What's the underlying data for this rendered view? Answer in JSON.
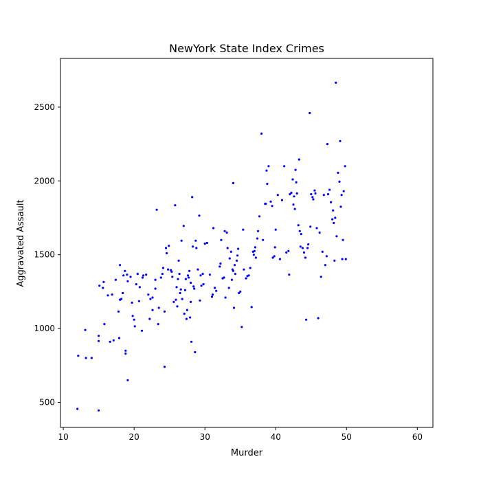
{
  "chart_data": {
    "type": "scatter",
    "title": "NewYork State Index Crimes",
    "xlabel": "Murder",
    "ylabel": "Aggravated Assault",
    "xlim": [
      9.6,
      62.2
    ],
    "ylim": [
      330,
      2830
    ],
    "xticks": [
      10,
      20,
      30,
      40,
      50,
      60
    ],
    "yticks": [
      500,
      1000,
      1500,
      2000,
      2500
    ],
    "grid": false,
    "marker_color": "#0000ff",
    "points": [
      [
        12.0,
        455
      ],
      [
        12.1,
        815
      ],
      [
        13.1,
        990
      ],
      [
        13.2,
        800
      ],
      [
        14.0,
        800
      ],
      [
        15.0,
        445
      ],
      [
        15.0,
        950
      ],
      [
        15.0,
        915
      ],
      [
        15.1,
        1290
      ],
      [
        15.6,
        1275
      ],
      [
        15.7,
        1315
      ],
      [
        15.8,
        1030
      ],
      [
        16.3,
        1225
      ],
      [
        16.6,
        910
      ],
      [
        16.9,
        1230
      ],
      [
        17.1,
        920
      ],
      [
        17.4,
        1330
      ],
      [
        17.8,
        1115
      ],
      [
        17.9,
        935
      ],
      [
        18.0,
        1430
      ],
      [
        18.0,
        1195
      ],
      [
        18.2,
        1200
      ],
      [
        18.4,
        1240
      ],
      [
        18.5,
        1360
      ],
      [
        18.7,
        1390
      ],
      [
        18.8,
        850
      ],
      [
        18.8,
        830
      ],
      [
        19.0,
        1365
      ],
      [
        19.1,
        1320
      ],
      [
        19.1,
        650
      ],
      [
        19.5,
        1350
      ],
      [
        19.7,
        1175
      ],
      [
        19.8,
        1085
      ],
      [
        20.0,
        1060
      ],
      [
        20.1,
        1015
      ],
      [
        20.3,
        1300
      ],
      [
        20.5,
        1370
      ],
      [
        20.7,
        1185
      ],
      [
        20.8,
        1280
      ],
      [
        21.1,
        985
      ],
      [
        21.2,
        1345
      ],
      [
        21.3,
        1360
      ],
      [
        21.7,
        1365
      ],
      [
        22.0,
        1230
      ],
      [
        22.2,
        1065
      ],
      [
        22.3,
        1200
      ],
      [
        22.6,
        1210
      ],
      [
        22.6,
        1125
      ],
      [
        23.0,
        1270
      ],
      [
        23.0,
        1330
      ],
      [
        23.2,
        1805
      ],
      [
        23.4,
        1030
      ],
      [
        23.5,
        1140
      ],
      [
        23.8,
        1345
      ],
      [
        24.0,
        1370
      ],
      [
        24.1,
        1410
      ],
      [
        24.3,
        1115
      ],
      [
        24.3,
        740
      ],
      [
        24.5,
        1545
      ],
      [
        24.6,
        1510
      ],
      [
        24.8,
        1400
      ],
      [
        24.9,
        1560
      ],
      [
        25.2,
        1395
      ],
      [
        25.3,
        1385
      ],
      [
        25.4,
        1350
      ],
      [
        25.6,
        1180
      ],
      [
        25.8,
        1835
      ],
      [
        25.9,
        1195
      ],
      [
        26.0,
        1280
      ],
      [
        26.1,
        1150
      ],
      [
        26.2,
        1335
      ],
      [
        26.3,
        1460
      ],
      [
        26.4,
        1370
      ],
      [
        26.5,
        1240
      ],
      [
        26.6,
        1265
      ],
      [
        26.7,
        1595
      ],
      [
        26.8,
        1200
      ],
      [
        27.0,
        1695
      ],
      [
        27.1,
        1100
      ],
      [
        27.2,
        1260
      ],
      [
        27.3,
        1335
      ],
      [
        27.4,
        1065
      ],
      [
        27.5,
        1125
      ],
      [
        27.6,
        1360
      ],
      [
        27.7,
        1345
      ],
      [
        27.8,
        1390
      ],
      [
        27.9,
        1075
      ],
      [
        28.0,
        1310
      ],
      [
        28.0,
        1180
      ],
      [
        28.1,
        910
      ],
      [
        28.2,
        1890
      ],
      [
        28.3,
        1555
      ],
      [
        28.4,
        1285
      ],
      [
        28.5,
        1270
      ],
      [
        28.6,
        840
      ],
      [
        28.7,
        1595
      ],
      [
        28.8,
        1545
      ],
      [
        29.0,
        1400
      ],
      [
        29.2,
        1765
      ],
      [
        29.3,
        1190
      ],
      [
        29.4,
        1360
      ],
      [
        29.5,
        1290
      ],
      [
        29.7,
        1370
      ],
      [
        29.8,
        1300
      ],
      [
        30.0,
        1575
      ],
      [
        30.3,
        1580
      ],
      [
        30.7,
        1365
      ],
      [
        31.0,
        1215
      ],
      [
        31.1,
        1230
      ],
      [
        31.2,
        1680
      ],
      [
        31.4,
        1275
      ],
      [
        31.6,
        1255
      ],
      [
        32.1,
        1420
      ],
      [
        32.2,
        1440
      ],
      [
        32.3,
        1600
      ],
      [
        32.5,
        1340
      ],
      [
        32.7,
        1345
      ],
      [
        32.8,
        1660
      ],
      [
        32.9,
        1210
      ],
      [
        33.1,
        1650
      ],
      [
        33.2,
        1545
      ],
      [
        33.4,
        1275
      ],
      [
        33.5,
        1475
      ],
      [
        33.7,
        1520
      ],
      [
        33.8,
        1330
      ],
      [
        33.9,
        1400
      ],
      [
        34.0,
        1985
      ],
      [
        34.0,
        1390
      ],
      [
        34.1,
        1140
      ],
      [
        34.2,
        1430
      ],
      [
        34.3,
        1370
      ],
      [
        34.5,
        1460
      ],
      [
        34.6,
        1495
      ],
      [
        34.7,
        1540
      ],
      [
        34.8,
        1240
      ],
      [
        35.0,
        1250
      ],
      [
        35.2,
        1010
      ],
      [
        35.4,
        1670
      ],
      [
        35.5,
        1400
      ],
      [
        35.8,
        1340
      ],
      [
        36.0,
        1355
      ],
      [
        36.2,
        1360
      ],
      [
        36.4,
        1410
      ],
      [
        36.6,
        1145
      ],
      [
        36.8,
        1520
      ],
      [
        36.9,
        1500
      ],
      [
        37.0,
        1525
      ],
      [
        37.1,
        1550
      ],
      [
        37.2,
        1480
      ],
      [
        37.4,
        1610
      ],
      [
        37.5,
        1660
      ],
      [
        37.7,
        1760
      ],
      [
        38.0,
        2320
      ],
      [
        38.2,
        1600
      ],
      [
        38.5,
        1845
      ],
      [
        38.6,
        1845
      ],
      [
        38.7,
        2070
      ],
      [
        38.8,
        1980
      ],
      [
        39.0,
        2100
      ],
      [
        39.3,
        1860
      ],
      [
        39.5,
        1830
      ],
      [
        39.6,
        1480
      ],
      [
        39.8,
        1490
      ],
      [
        39.9,
        1550
      ],
      [
        40.0,
        1670
      ],
      [
        40.3,
        1905
      ],
      [
        40.6,
        1470
      ],
      [
        40.9,
        1870
      ],
      [
        41.2,
        2100
      ],
      [
        41.5,
        1515
      ],
      [
        41.8,
        1525
      ],
      [
        41.9,
        1365
      ],
      [
        42.0,
        1910
      ],
      [
        42.2,
        1920
      ],
      [
        42.4,
        2010
      ],
      [
        42.5,
        1840
      ],
      [
        42.6,
        1895
      ],
      [
        42.7,
        1810
      ],
      [
        42.8,
        2075
      ],
      [
        42.9,
        1990
      ],
      [
        43.0,
        1915
      ],
      [
        43.2,
        1700
      ],
      [
        43.3,
        2145
      ],
      [
        43.4,
        1660
      ],
      [
        43.5,
        1555
      ],
      [
        43.6,
        1640
      ],
      [
        43.8,
        1545
      ],
      [
        44.0,
        1515
      ],
      [
        44.2,
        1480
      ],
      [
        44.3,
        1060
      ],
      [
        44.5,
        1545
      ],
      [
        44.6,
        1570
      ],
      [
        44.8,
        2460
      ],
      [
        44.9,
        1690
      ],
      [
        45.0,
        1910
      ],
      [
        45.2,
        1890
      ],
      [
        45.3,
        1875
      ],
      [
        45.5,
        1935
      ],
      [
        45.6,
        1915
      ],
      [
        45.8,
        1680
      ],
      [
        46.0,
        1070
      ],
      [
        46.2,
        1650
      ],
      [
        46.4,
        1350
      ],
      [
        46.6,
        1520
      ],
      [
        46.8,
        1905
      ],
      [
        47.0,
        1430
      ],
      [
        47.2,
        1490
      ],
      [
        47.3,
        2250
      ],
      [
        47.4,
        1910
      ],
      [
        47.6,
        1940
      ],
      [
        47.8,
        1855
      ],
      [
        48.0,
        1740
      ],
      [
        48.1,
        1800
      ],
      [
        48.2,
        1715
      ],
      [
        48.3,
        1460
      ],
      [
        48.4,
        1750
      ],
      [
        48.5,
        2665
      ],
      [
        48.6,
        1625
      ],
      [
        48.8,
        2055
      ],
      [
        49.0,
        1995
      ],
      [
        49.1,
        2270
      ],
      [
        49.2,
        1825
      ],
      [
        49.3,
        1905
      ],
      [
        49.4,
        1470
      ],
      [
        49.5,
        1600
      ],
      [
        49.6,
        1930
      ],
      [
        49.8,
        2100
      ],
      [
        49.9,
        1470
      ]
    ]
  }
}
